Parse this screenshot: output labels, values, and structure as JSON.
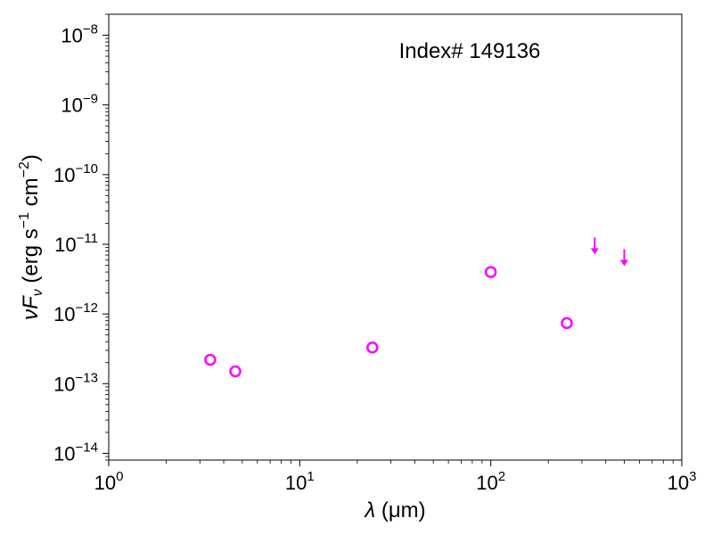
{
  "chart_data": {
    "type": "scatter",
    "annotation": "Index# 149136",
    "xlabel": {
      "symbol": "λ",
      "unit": " (μm)"
    },
    "ylabel": {
      "prefix": "ν",
      "F": "F",
      "sub": "ν",
      "units_open": " (erg s",
      "exp1": "−1",
      "middle": " cm",
      "exp2": "−2",
      "close": ")"
    },
    "xscale": "log",
    "yscale": "log",
    "xlim": [
      1,
      1000
    ],
    "ylim": [
      8e-15,
      2e-08
    ],
    "x_ticks": [
      {
        "value": 1,
        "base": "10",
        "exp": "0"
      },
      {
        "value": 10,
        "base": "10",
        "exp": "1"
      },
      {
        "value": 100,
        "base": "10",
        "exp": "2"
      },
      {
        "value": 1000,
        "base": "10",
        "exp": "3"
      }
    ],
    "y_ticks": [
      {
        "value": 1e-14,
        "base": "10",
        "exp": "−14"
      },
      {
        "value": 1e-13,
        "base": "10",
        "exp": "−13"
      },
      {
        "value": 1e-12,
        "base": "10",
        "exp": "−12"
      },
      {
        "value": 1e-11,
        "base": "10",
        "exp": "−11"
      },
      {
        "value": 1e-10,
        "base": "10",
        "exp": "−10"
      },
      {
        "value": 1e-09,
        "base": "10",
        "exp": "−9"
      },
      {
        "value": 1e-08,
        "base": "10",
        "exp": "−8"
      }
    ],
    "grid": false,
    "series": [
      {
        "marker": "open-circle",
        "color": "#ff00ff",
        "points": [
          {
            "x": 3.4,
            "y": 2.2e-13
          },
          {
            "x": 4.6,
            "y": 1.5e-13
          },
          {
            "x": 24,
            "y": 3.3e-13
          },
          {
            "x": 100,
            "y": 4e-12
          },
          {
            "x": 250,
            "y": 7.4e-13
          }
        ]
      },
      {
        "marker": "upper-limit-arrow",
        "color": "#ff00ff",
        "points": [
          {
            "x": 350,
            "y": 1.25e-11
          },
          {
            "x": 500,
            "y": 8.5e-12
          }
        ]
      }
    ]
  }
}
